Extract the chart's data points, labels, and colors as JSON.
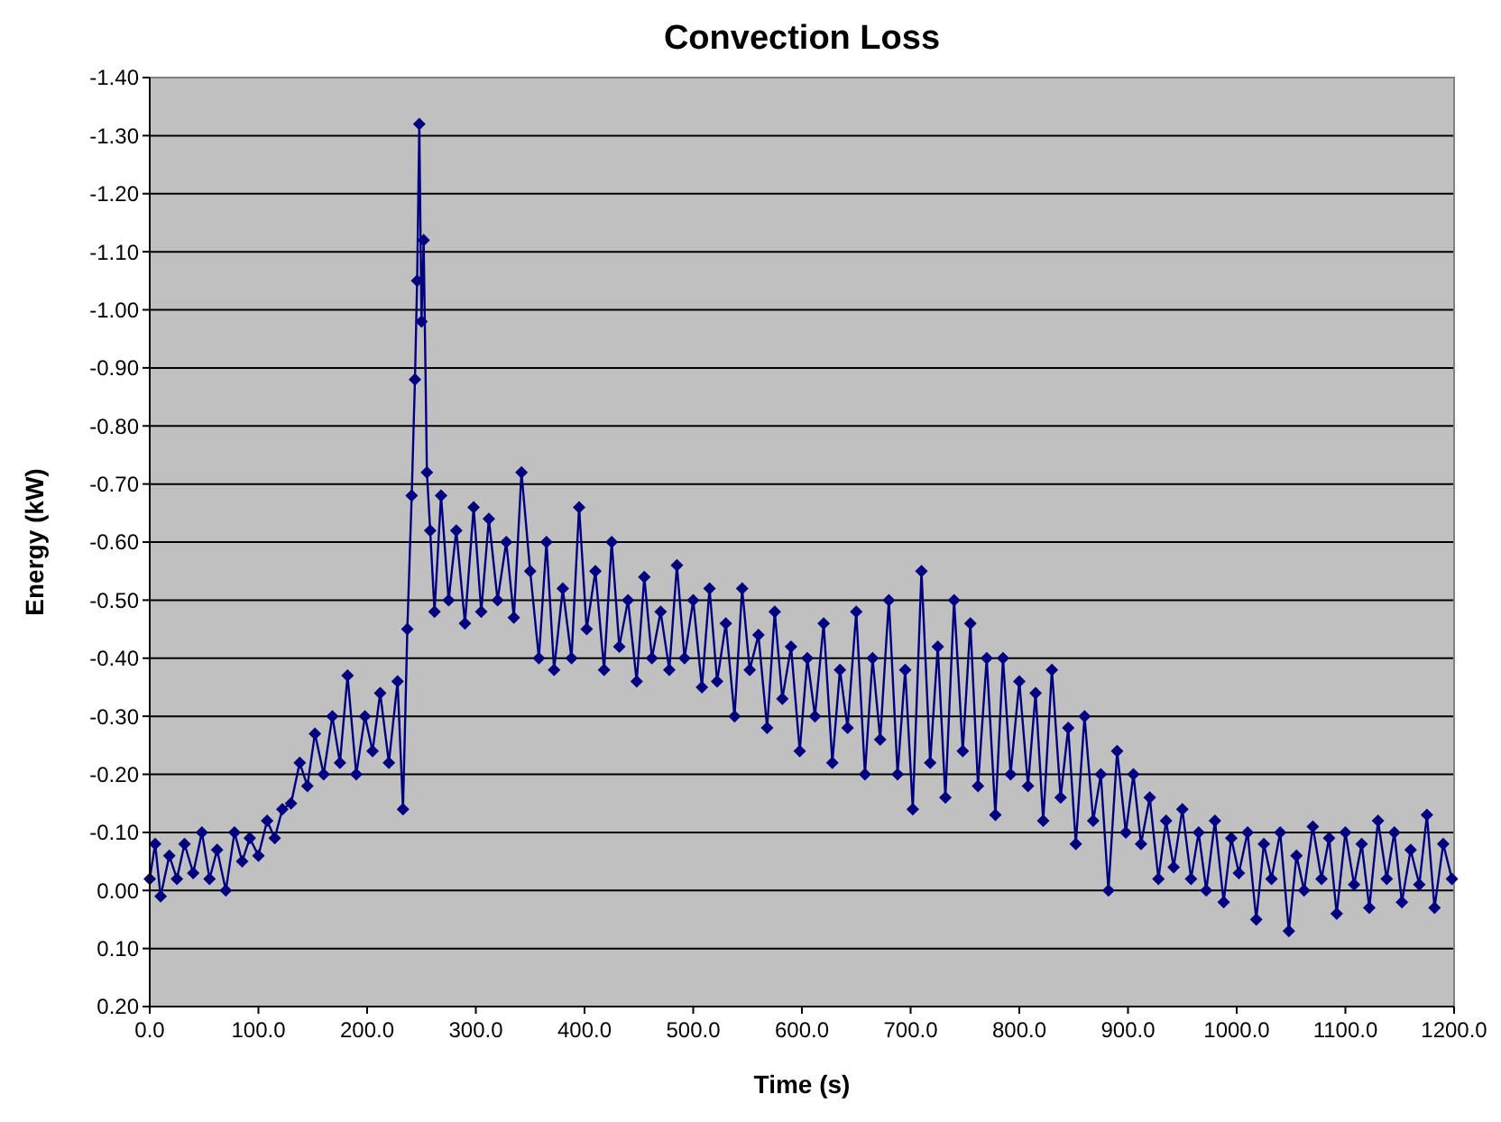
{
  "chart_data": {
    "type": "line",
    "title": "Convection Loss",
    "xlabel": "Time (s)",
    "ylabel": "Energy (kW)",
    "xlim": [
      0,
      1200
    ],
    "xticks": [
      {
        "value": 0,
        "label": "0.0"
      },
      {
        "value": 100,
        "label": "100.0"
      },
      {
        "value": 200,
        "label": "200.0"
      },
      {
        "value": 300,
        "label": "300.0"
      },
      {
        "value": 400,
        "label": "400.0"
      },
      {
        "value": 500,
        "label": "500.0"
      },
      {
        "value": 600,
        "label": "600.0"
      },
      {
        "value": 700,
        "label": "700.0"
      },
      {
        "value": 800,
        "label": "800.0"
      },
      {
        "value": 900,
        "label": "900.0"
      },
      {
        "value": 1000,
        "label": "1000.0"
      },
      {
        "value": 1100,
        "label": "1100.0"
      },
      {
        "value": 1200,
        "label": "1200.0"
      }
    ],
    "ylim": [
      0.2,
      -1.4
    ],
    "yticks": [
      {
        "value": 0.2,
        "label": "0.20"
      },
      {
        "value": 0.1,
        "label": "0.10"
      },
      {
        "value": 0,
        "label": "0.00"
      },
      {
        "value": -0.1,
        "label": "-0.10"
      },
      {
        "value": -0.2,
        "label": "-0.20"
      },
      {
        "value": -0.3,
        "label": "-0.30"
      },
      {
        "value": -0.4,
        "label": "-0.40"
      },
      {
        "value": -0.5,
        "label": "-0.50"
      },
      {
        "value": -0.6,
        "label": "-0.60"
      },
      {
        "value": -0.7,
        "label": "-0.70"
      },
      {
        "value": -0.8,
        "label": "-0.80"
      },
      {
        "value": -0.9,
        "label": "-0.90"
      },
      {
        "value": -1.0,
        "label": "-1.00"
      },
      {
        "value": -1.1,
        "label": "-1.10"
      },
      {
        "value": -1.2,
        "label": "-1.20"
      },
      {
        "value": -1.3,
        "label": "-1.30"
      },
      {
        "value": -1.4,
        "label": "-1.40"
      }
    ],
    "grid": "y",
    "marker": "diamond",
    "line_style": "solid",
    "series": [
      {
        "color": "#000080",
        "x": [
          0,
          5,
          10,
          18,
          25,
          32,
          40,
          48,
          55,
          62,
          70,
          78,
          85,
          92,
          100,
          108,
          115,
          122,
          130,
          138,
          145,
          152,
          160,
          168,
          175,
          182,
          190,
          198,
          205,
          212,
          220,
          228,
          233,
          237,
          241,
          244,
          246,
          248,
          250,
          252,
          255,
          258,
          262,
          268,
          275,
          282,
          290,
          298,
          305,
          312,
          320,
          328,
          335,
          342,
          350,
          358,
          365,
          372,
          380,
          388,
          395,
          402,
          410,
          418,
          425,
          432,
          440,
          448,
          455,
          462,
          470,
          478,
          485,
          492,
          500,
          508,
          515,
          522,
          530,
          538,
          545,
          552,
          560,
          568,
          575,
          582,
          590,
          598,
          605,
          612,
          620,
          628,
          635,
          642,
          650,
          658,
          665,
          672,
          680,
          688,
          695,
          702,
          710,
          718,
          725,
          732,
          740,
          748,
          755,
          762,
          770,
          778,
          785,
          792,
          800,
          808,
          815,
          822,
          830,
          838,
          845,
          852,
          860,
          868,
          875,
          882,
          890,
          898,
          905,
          912,
          920,
          928,
          935,
          942,
          950,
          958,
          965,
          972,
          980,
          988,
          995,
          1002,
          1010,
          1018,
          1025,
          1032,
          1040,
          1048,
          1055,
          1062,
          1070,
          1078,
          1085,
          1092,
          1100,
          1108,
          1115,
          1122,
          1130,
          1138,
          1145,
          1152,
          1160,
          1168,
          1175,
          1182,
          1190,
          1198
        ],
        "values": [
          -0.02,
          -0.08,
          0.01,
          -0.06,
          -0.02,
          -0.08,
          -0.03,
          -0.1,
          -0.02,
          -0.07,
          0.0,
          -0.1,
          -0.05,
          -0.09,
          -0.06,
          -0.12,
          -0.09,
          -0.14,
          -0.15,
          -0.22,
          -0.18,
          -0.27,
          -0.2,
          -0.3,
          -0.22,
          -0.37,
          -0.2,
          -0.3,
          -0.24,
          -0.34,
          -0.22,
          -0.36,
          -0.14,
          -0.45,
          -0.68,
          -0.88,
          -1.05,
          -1.32,
          -0.98,
          -1.12,
          -0.72,
          -0.62,
          -0.48,
          -0.68,
          -0.5,
          -0.62,
          -0.46,
          -0.66,
          -0.48,
          -0.64,
          -0.5,
          -0.6,
          -0.47,
          -0.72,
          -0.55,
          -0.4,
          -0.6,
          -0.38,
          -0.52,
          -0.4,
          -0.66,
          -0.45,
          -0.55,
          -0.38,
          -0.6,
          -0.42,
          -0.5,
          -0.36,
          -0.54,
          -0.4,
          -0.48,
          -0.38,
          -0.56,
          -0.4,
          -0.5,
          -0.35,
          -0.52,
          -0.36,
          -0.46,
          -0.3,
          -0.52,
          -0.38,
          -0.44,
          -0.28,
          -0.48,
          -0.33,
          -0.42,
          -0.24,
          -0.4,
          -0.3,
          -0.46,
          -0.22,
          -0.38,
          -0.28,
          -0.48,
          -0.2,
          -0.4,
          -0.26,
          -0.5,
          -0.2,
          -0.38,
          -0.14,
          -0.55,
          -0.22,
          -0.42,
          -0.16,
          -0.5,
          -0.24,
          -0.46,
          -0.18,
          -0.4,
          -0.13,
          -0.4,
          -0.2,
          -0.36,
          -0.18,
          -0.34,
          -0.12,
          -0.38,
          -0.16,
          -0.28,
          -0.08,
          -0.3,
          -0.12,
          -0.2,
          0.0,
          -0.24,
          -0.1,
          -0.2,
          -0.08,
          -0.16,
          -0.02,
          -0.12,
          -0.04,
          -0.14,
          -0.02,
          -0.1,
          0.0,
          -0.12,
          0.02,
          -0.09,
          -0.03,
          -0.1,
          0.05,
          -0.08,
          -0.02,
          -0.1,
          0.07,
          -0.06,
          0.0,
          -0.11,
          -0.02,
          -0.09,
          0.04,
          -0.1,
          -0.01,
          -0.08,
          0.03,
          -0.12,
          -0.02,
          -0.1,
          0.02,
          -0.07,
          -0.01,
          -0.13,
          0.03,
          -0.08,
          -0.02
        ]
      }
    ]
  }
}
